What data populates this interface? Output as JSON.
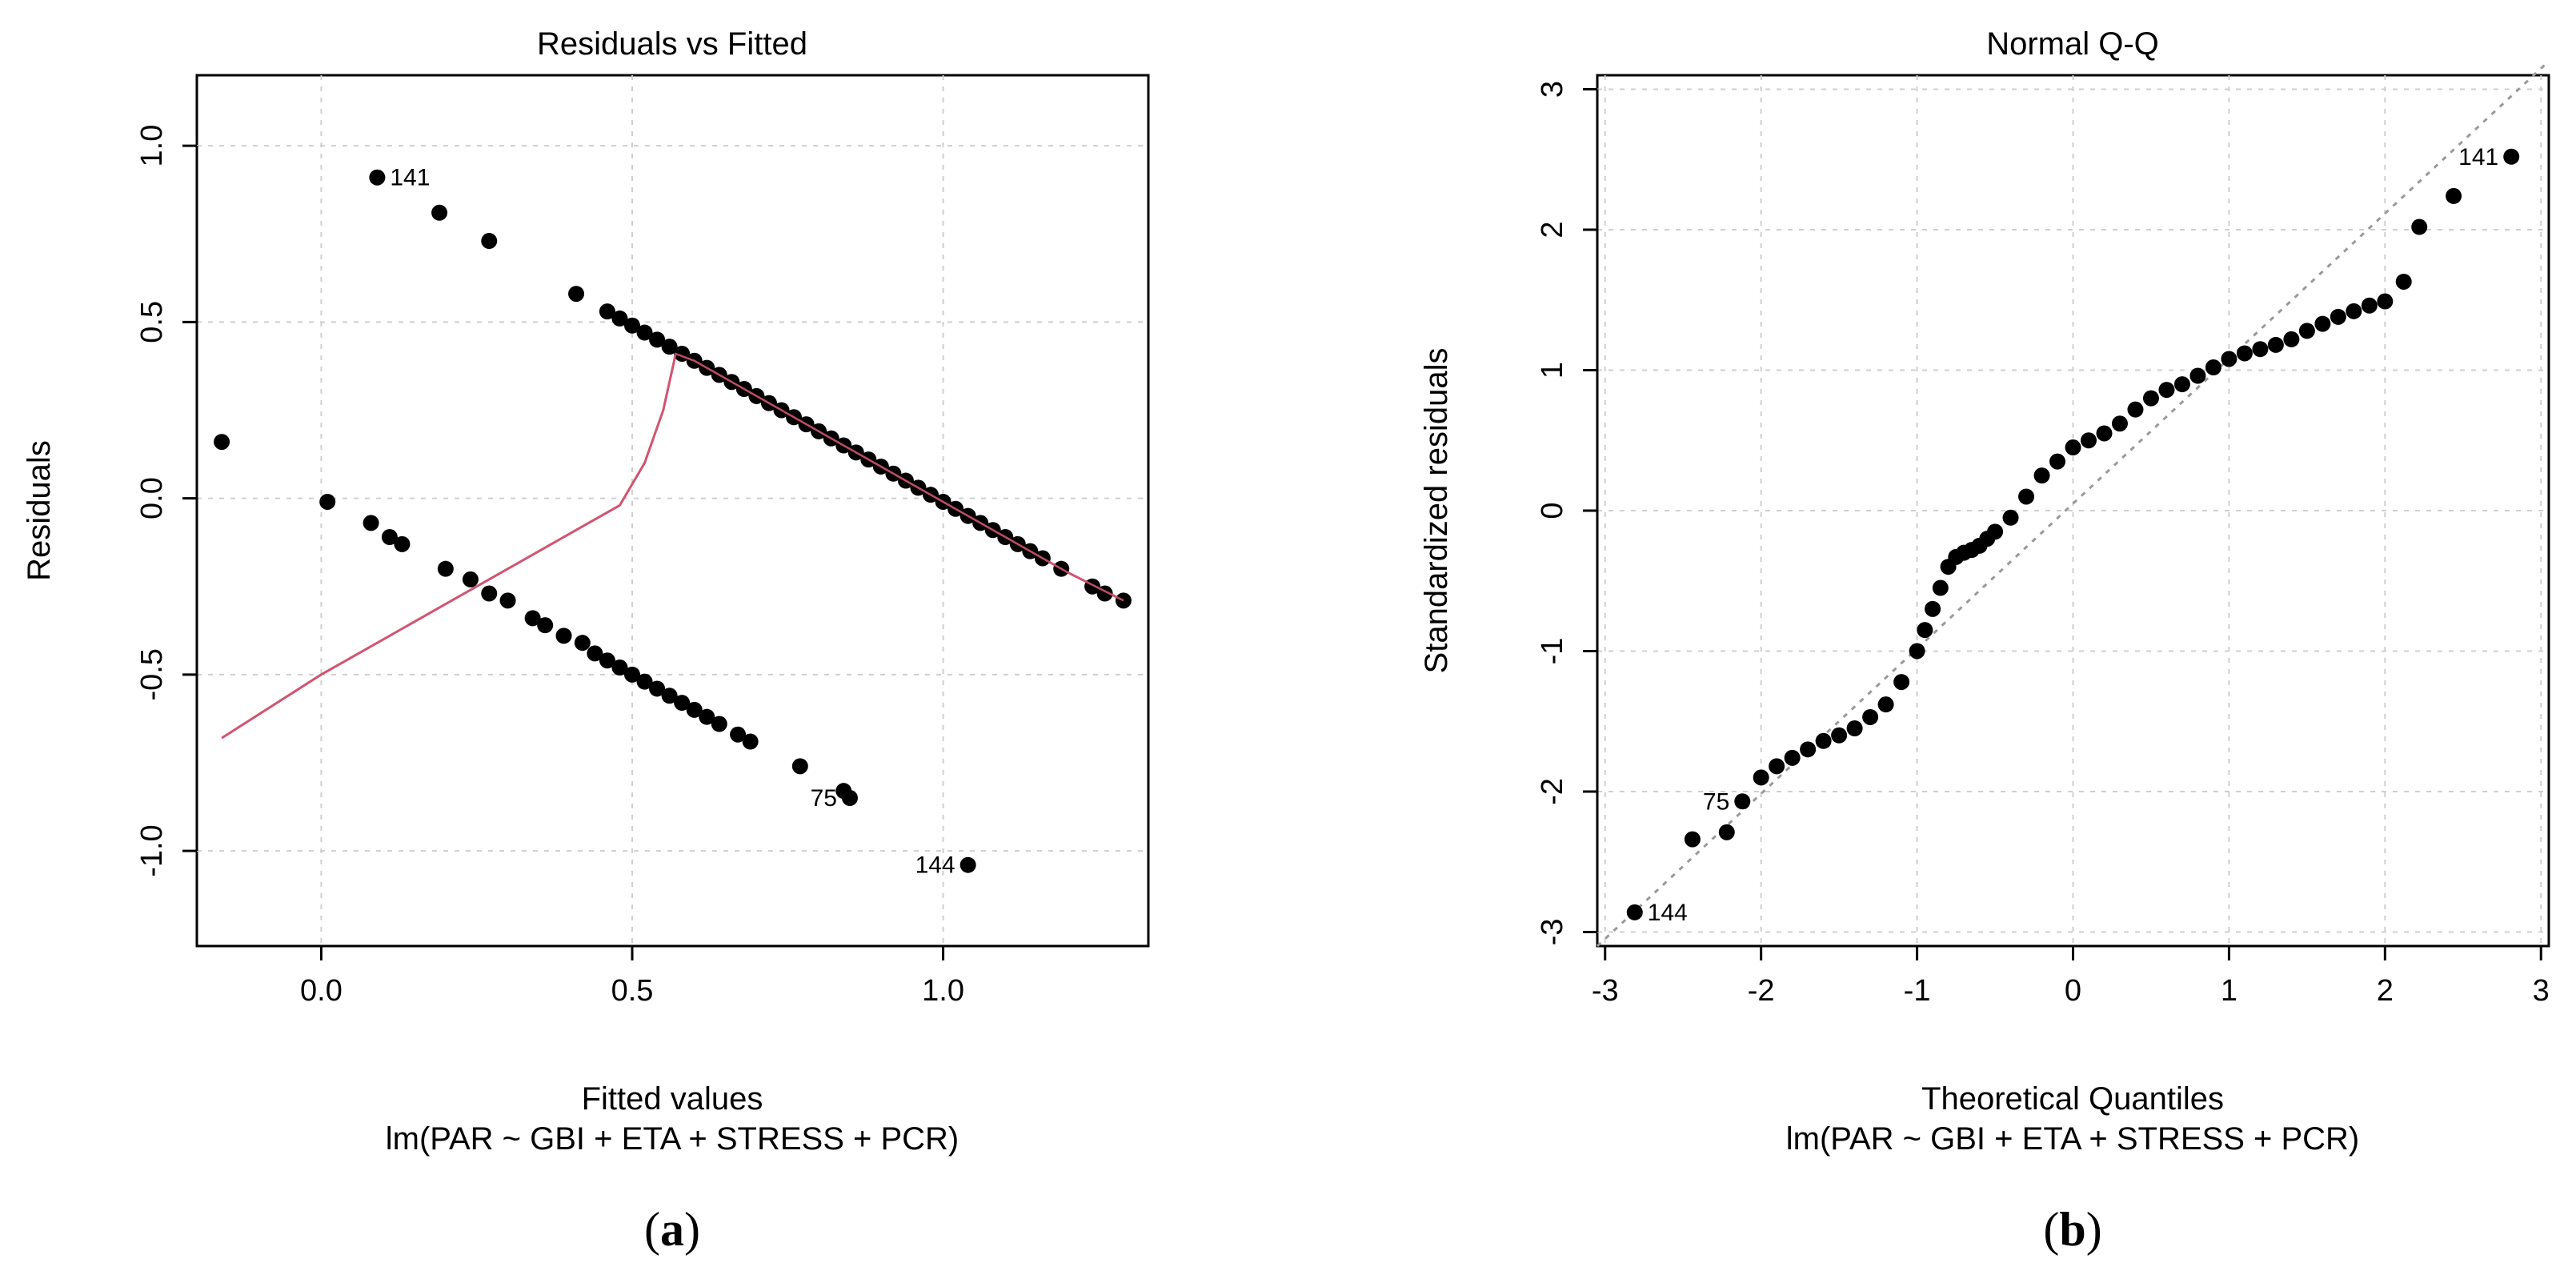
{
  "chart_data": [
    {
      "type": "scatter",
      "panel_label": "a",
      "title": "Residuals vs Fitted",
      "xlabel": "Fitted values",
      "xlabel2": "lm(PAR ~ GBI + ETA + STRESS + PCR)",
      "ylabel": "Residuals",
      "xlim": [
        -0.2,
        1.33
      ],
      "ylim": [
        -1.27,
        1.2
      ],
      "xticks": [
        0.0,
        0.5,
        1.0
      ],
      "xtick_labels": [
        "0.0",
        "0.5",
        "1.0"
      ],
      "yticks": [
        -1.0,
        -0.5,
        0.0,
        0.5,
        1.0
      ],
      "ytick_labels": [
        "-1.0",
        "-0.5",
        "0.0",
        "0.5",
        "1.0"
      ],
      "grid": true,
      "point_labels": [
        {
          "text": "141",
          "x": 0.09,
          "y": 0.91,
          "side": "right"
        },
        {
          "text": "75",
          "x": 0.85,
          "y": -0.85,
          "side": "left"
        },
        {
          "text": "144",
          "x": 1.04,
          "y": -1.04,
          "side": "left"
        }
      ],
      "points": {
        "x": [
          -0.16,
          0.01,
          0.08,
          0.11,
          0.13,
          0.2,
          0.24,
          0.27,
          0.3,
          0.34,
          0.36,
          0.39,
          0.42,
          0.44,
          0.46,
          0.48,
          0.5,
          0.52,
          0.54,
          0.56,
          0.58,
          0.6,
          0.62,
          0.64,
          0.67,
          0.69,
          0.77,
          0.84,
          0.85,
          1.04,
          0.09,
          0.19,
          0.27,
          0.41,
          0.46,
          0.48,
          0.5,
          0.52,
          0.54,
          0.56,
          0.58,
          0.6,
          0.62,
          0.64,
          0.66,
          0.68,
          0.7,
          0.72,
          0.74,
          0.76,
          0.78,
          0.8,
          0.82,
          0.84,
          0.86,
          0.88,
          0.9,
          0.92,
          0.94,
          0.96,
          0.98,
          1.0,
          1.02,
          1.04,
          1.06,
          1.08,
          1.1,
          1.12,
          1.14,
          1.16,
          1.19,
          1.24,
          1.26,
          1.29
        ],
        "y": [
          0.16,
          -0.01,
          -0.07,
          -0.11,
          -0.13,
          -0.2,
          -0.23,
          -0.27,
          -0.29,
          -0.34,
          -0.36,
          -0.39,
          -0.41,
          -0.44,
          -0.46,
          -0.48,
          -0.5,
          -0.52,
          -0.54,
          -0.56,
          -0.58,
          -0.6,
          -0.62,
          -0.64,
          -0.67,
          -0.69,
          -0.76,
          -0.83,
          -0.85,
          -1.04,
          0.91,
          0.81,
          0.73,
          0.58,
          0.53,
          0.51,
          0.49,
          0.47,
          0.45,
          0.43,
          0.41,
          0.39,
          0.37,
          0.35,
          0.33,
          0.31,
          0.29,
          0.27,
          0.25,
          0.23,
          0.21,
          0.19,
          0.17,
          0.15,
          0.13,
          0.11,
          0.09,
          0.07,
          0.05,
          0.03,
          0.01,
          -0.01,
          -0.03,
          -0.05,
          -0.07,
          -0.09,
          -0.11,
          -0.13,
          -0.15,
          -0.17,
          -0.2,
          -0.25,
          -0.27,
          -0.29
        ]
      },
      "smooth_line": {
        "color": "#d05570",
        "x": [
          -0.16,
          0.0,
          0.1,
          0.2,
          0.3,
          0.4,
          0.48,
          0.52,
          0.55,
          0.57,
          0.6,
          0.7,
          0.8,
          0.9,
          1.0,
          1.1,
          1.2,
          1.29
        ],
        "y": [
          -0.68,
          -0.5,
          -0.4,
          -0.3,
          -0.2,
          -0.1,
          -0.02,
          0.1,
          0.25,
          0.41,
          0.39,
          0.29,
          0.19,
          0.09,
          -0.01,
          -0.11,
          -0.21,
          -0.29
        ]
      }
    },
    {
      "type": "scatter",
      "panel_label": "b",
      "title": "Normal Q-Q",
      "xlabel": "Theoretical Quantiles",
      "xlabel2": "lm(PAR ~ GBI + ETA + STRESS + PCR)",
      "ylabel": "Standardized residuals",
      "xlim": [
        -3.05,
        3.05
      ],
      "ylim": [
        -3.1,
        3.1
      ],
      "xticks": [
        -3,
        -2,
        -1,
        0,
        1,
        2,
        3
      ],
      "xtick_labels": [
        "-3",
        "-2",
        "-1",
        "0",
        "1",
        "2",
        "3"
      ],
      "yticks": [
        -3,
        -2,
        -1,
        0,
        1,
        2,
        3
      ],
      "ytick_labels": [
        "-3",
        "-2",
        "-1",
        "0",
        "1",
        "2",
        "3"
      ],
      "grid": true,
      "point_labels": [
        {
          "text": "141",
          "x": 2.81,
          "y": 2.52,
          "side": "left"
        },
        {
          "text": "75",
          "x": -2.12,
          "y": -2.07,
          "side": "left"
        },
        {
          "text": "144",
          "x": -2.81,
          "y": -2.86,
          "side": "right"
        }
      ],
      "reference_line": {
        "x": [
          -3.05,
          3.05
        ],
        "y": [
          -3.1,
          3.2
        ],
        "color": "#999999"
      },
      "points": {
        "x": [
          -2.81,
          -2.44,
          -2.22,
          -2.12,
          -2.0,
          -1.9,
          -1.8,
          -1.7,
          -1.6,
          -1.5,
          -1.4,
          -1.3,
          -1.2,
          -1.1,
          -1.0,
          -0.95,
          -0.9,
          -0.85,
          -0.8,
          -0.75,
          -0.7,
          -0.65,
          -0.6,
          -0.55,
          -0.5,
          -0.4,
          -0.3,
          -0.2,
          -0.1,
          0.0,
          0.1,
          0.2,
          0.3,
          0.4,
          0.5,
          0.6,
          0.7,
          0.8,
          0.9,
          1.0,
          1.1,
          1.2,
          1.3,
          1.4,
          1.5,
          1.6,
          1.7,
          1.8,
          1.9,
          2.0,
          2.12,
          2.22,
          2.44,
          2.81
        ],
        "y": [
          -2.86,
          -2.34,
          -2.29,
          -2.07,
          -1.9,
          -1.82,
          -1.76,
          -1.7,
          -1.64,
          -1.6,
          -1.55,
          -1.47,
          -1.38,
          -1.22,
          -1.0,
          -0.85,
          -0.7,
          -0.55,
          -0.4,
          -0.33,
          -0.3,
          -0.28,
          -0.25,
          -0.2,
          -0.15,
          -0.05,
          0.1,
          0.25,
          0.35,
          0.45,
          0.5,
          0.55,
          0.62,
          0.72,
          0.8,
          0.86,
          0.9,
          0.96,
          1.02,
          1.08,
          1.12,
          1.15,
          1.18,
          1.22,
          1.28,
          1.33,
          1.38,
          1.42,
          1.46,
          1.49,
          1.63,
          2.02,
          2.24,
          2.52
        ]
      }
    }
  ]
}
